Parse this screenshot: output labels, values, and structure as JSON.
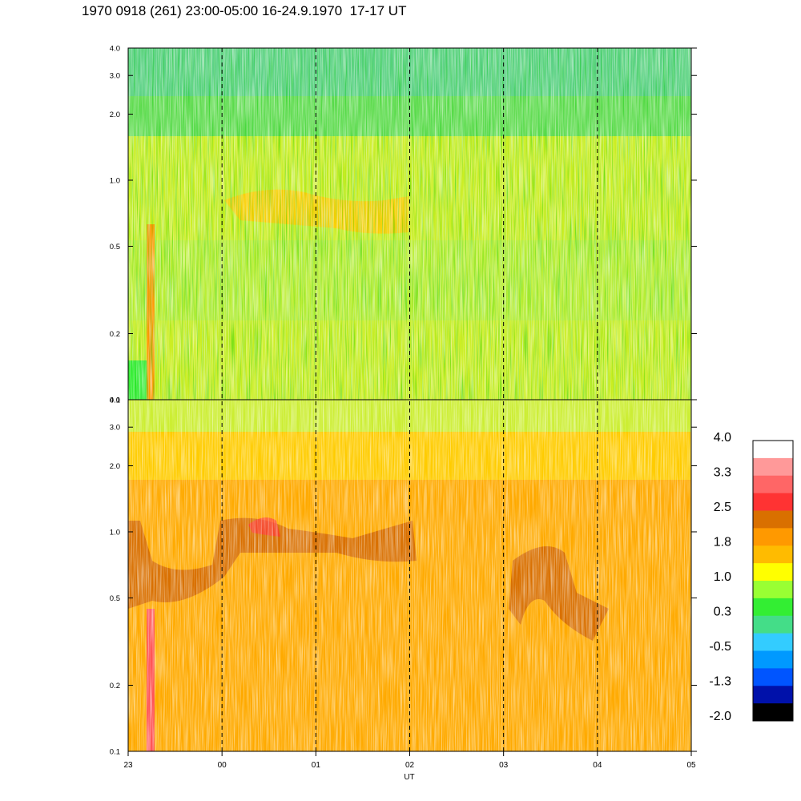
{
  "title": "1970 0918 (261) 23:00-05:00 16-24.9.1970  17-17 UT",
  "chart_data": [
    {
      "type": "heatmap",
      "panel": "top",
      "x_unit": "UT",
      "x_range": [
        "23:00",
        "05:00"
      ],
      "y_scale": "log",
      "ylim": [
        0.1,
        4.0
      ],
      "ytick_labels": [
        "0.1",
        "0.2",
        "0.5",
        "1.0",
        "2.0",
        "3.0",
        "4.0"
      ],
      "ytick_values": [
        0.1,
        0.2,
        0.5,
        1.0,
        2.0,
        3.0,
        4.0
      ],
      "dominant_levels": "mostly 0.3 to 1.0 (green/yellow), bands near 1.4 around 0.7-0.8"
    },
    {
      "type": "heatmap",
      "panel": "bottom",
      "x_unit": "UT",
      "x_range": [
        "23:00",
        "05:00"
      ],
      "y_scale": "log",
      "ylim": [
        0.1,
        4.0
      ],
      "ytick_labels": [
        "0.1",
        "0.2",
        "0.5",
        "1.0",
        "2.0",
        "3.0",
        "4.0"
      ],
      "ytick_values": [
        0.1,
        0.2,
        0.5,
        1.0,
        2.0,
        3.0,
        4.0
      ],
      "dominant_levels": "mostly 1.0 to 2.2 (yellow/orange), band near 2.2 around 0.6-1.0"
    }
  ],
  "x_axis": {
    "label": "UT",
    "tick_labels": [
      "23",
      "00",
      "01",
      "02",
      "03",
      "04",
      "05"
    ],
    "dashed_lines_at": [
      "00",
      "01",
      "02",
      "03",
      "04"
    ]
  },
  "colorbar": {
    "labels": [
      "4.0",
      "3.3",
      "2.5",
      "1.8",
      "1.0",
      "0.3",
      "-0.5",
      "-1.3",
      "-2.0"
    ],
    "colors_top_to_bottom": [
      "#ffffff",
      "#ff9999",
      "#ff6666",
      "#ff3333",
      "#d97000",
      "#ff9900",
      "#ffbb00",
      "#ffff00",
      "#99ff33",
      "#33ee33",
      "#44dd88",
      "#33ccff",
      "#0099ff",
      "#0055ff",
      "#0011aa",
      "#000000"
    ],
    "range": [
      -2.0,
      4.0
    ]
  }
}
